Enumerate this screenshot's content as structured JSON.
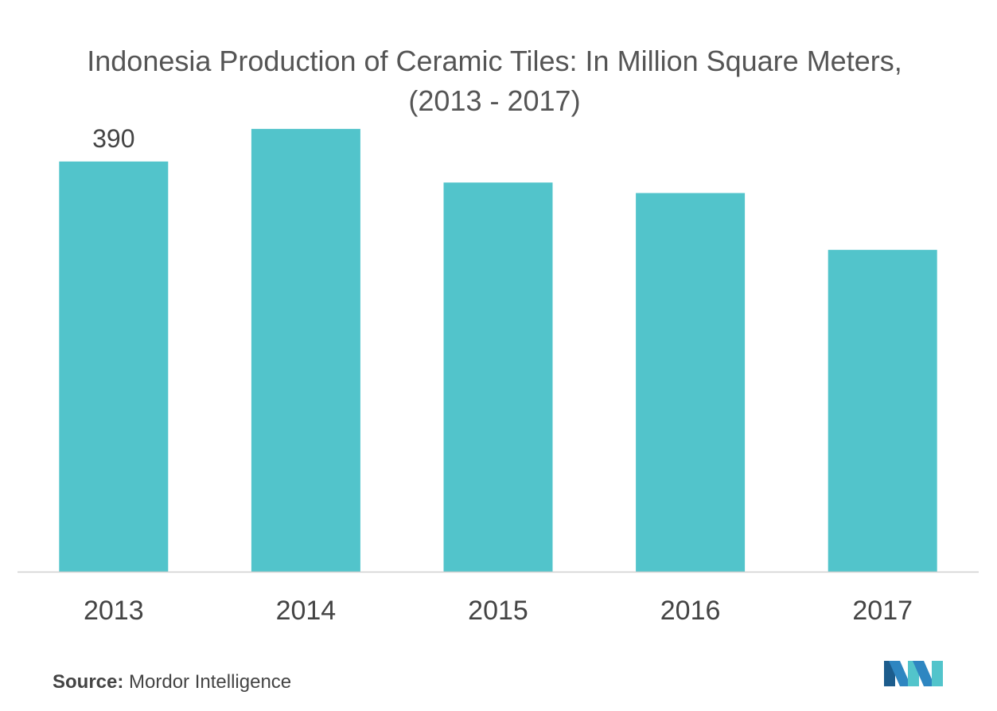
{
  "chart_data": {
    "type": "bar",
    "title": "Indonesia Production of Ceramic Tiles: In Million Square Meters, (2013 - 2017)",
    "categories": [
      "2013",
      "2014",
      "2015",
      "2016",
      "2017"
    ],
    "values": [
      390,
      421,
      370,
      360,
      306
    ],
    "data_labels": [
      "390",
      "",
      "",
      "",
      ""
    ],
    "xlabel": "",
    "ylabel": "",
    "ylim": [
      0,
      430
    ],
    "grid": false,
    "legend": "none",
    "colors": {
      "bar": "#52C4CB",
      "axis": "#d0d0d0",
      "tick_text": "#444444"
    }
  },
  "source": {
    "label": "Source:",
    "text": "Mordor Intelligence"
  },
  "logo": {
    "icon": "mordor-intelligence-logo",
    "colors": [
      "#1C5C8C",
      "#2E86C1",
      "#52C4CB"
    ]
  }
}
